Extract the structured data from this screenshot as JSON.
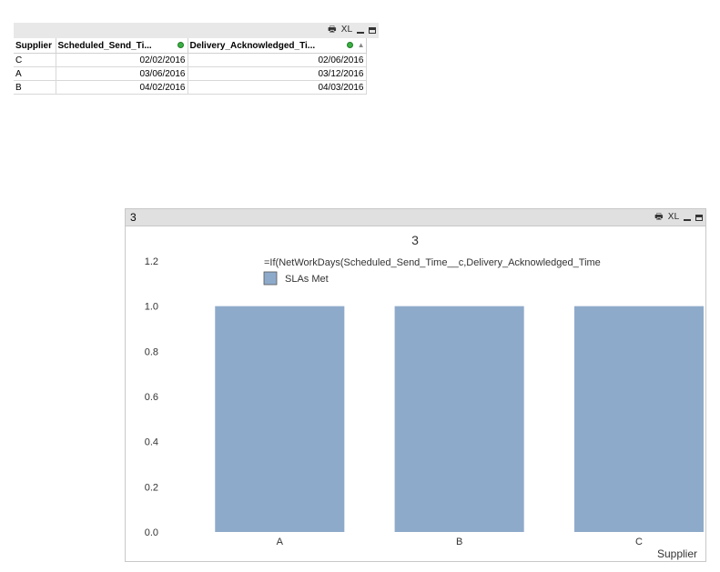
{
  "table": {
    "columns": [
      "Supplier",
      "Scheduled_Send_Ti...",
      "Delivery_Acknowledged_Ti..."
    ],
    "rows": [
      [
        "C",
        "02/02/2016",
        "02/06/2016"
      ],
      [
        "A",
        "03/06/2016",
        "03/12/2016"
      ],
      [
        "B",
        "04/02/2016",
        "04/03/2016"
      ]
    ],
    "icons": [
      "print-icon",
      "xl-export-icon",
      "minimize-icon",
      "maximize-icon"
    ],
    "xl_label": "XL"
  },
  "chart_window": {
    "caption": "3",
    "xl_label": "XL",
    "icons": [
      "print-icon",
      "xl-export-icon",
      "minimize-icon",
      "maximize-icon"
    ]
  },
  "chart_data": {
    "type": "bar",
    "title": "3",
    "subtitle": "=If(NetWorkDays(Scheduled_Send_Time__c,Delivery_Acknowledged_Time",
    "categories": [
      "A",
      "B",
      "C"
    ],
    "series": [
      {
        "name": "SLAs Met",
        "values": [
          1.0,
          1.0,
          1.0
        ],
        "color": "#8eaaca"
      }
    ],
    "xlabel": "Supplier",
    "ylabel": "",
    "ylim": [
      0,
      1.2
    ],
    "yticks": [
      "0.0",
      "0.2",
      "0.4",
      "0.6",
      "0.8",
      "1.0",
      "1.2"
    ],
    "legend": "top-left",
    "grid": false
  }
}
